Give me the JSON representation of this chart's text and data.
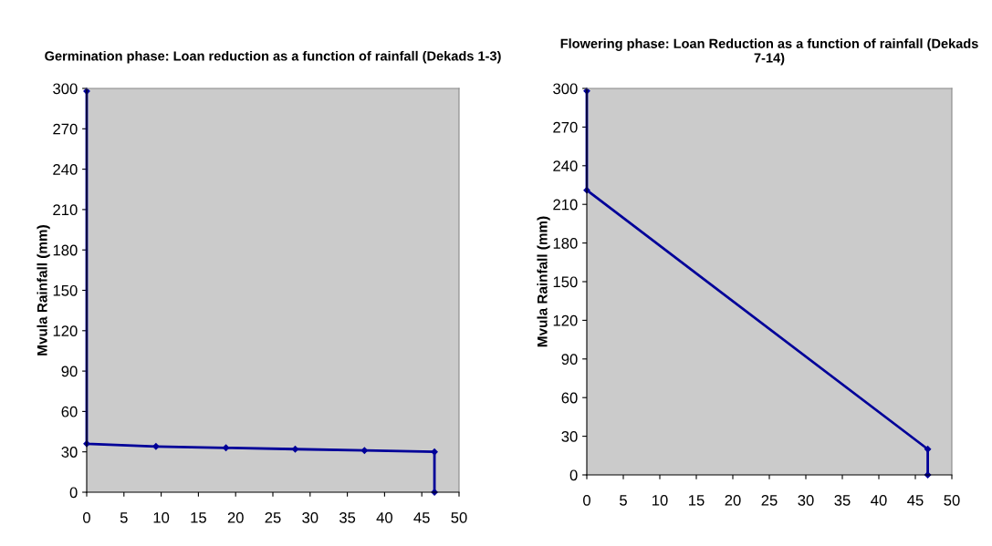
{
  "chart_data": [
    {
      "type": "line",
      "title": "Germination phase: Loan reduction as a function of rainfall (Dekads 1-3)",
      "ylabel": "Mvula Rainfall (mm)",
      "marker": "diamond",
      "line_style": "solid",
      "grid": false,
      "legend": false,
      "xlim": [
        0,
        50
      ],
      "xticks": [
        0,
        5,
        10,
        15,
        20,
        25,
        30,
        35,
        40,
        45,
        50
      ],
      "ylim": [
        0,
        300
      ],
      "yticks": [
        0,
        30,
        60,
        90,
        120,
        150,
        180,
        210,
        240,
        270,
        300
      ],
      "series": [
        {
          "color": "#000099",
          "x": [
            0,
            0,
            9.3,
            18.7,
            28,
            37.3,
            46.7,
            46.7
          ],
          "values": [
            298,
            36,
            34,
            33,
            32,
            31,
            30,
            0
          ]
        }
      ]
    },
    {
      "type": "line",
      "title": "Flowering phase: Loan Reduction as a function of rainfall (Dekads 7-14)",
      "ylabel": "Mvula Rainfall (mm)",
      "marker": "diamond",
      "line_style": "solid",
      "grid": false,
      "legend": false,
      "xlim": [
        0,
        50
      ],
      "xticks": [
        0,
        5,
        10,
        15,
        20,
        25,
        30,
        35,
        40,
        45,
        50
      ],
      "ylim": [
        0,
        300
      ],
      "yticks": [
        0,
        30,
        60,
        90,
        120,
        150,
        180,
        210,
        240,
        270,
        300
      ],
      "series": [
        {
          "color": "#000099",
          "x": [
            0,
            0,
            46.7,
            46.7
          ],
          "values": [
            298,
            221,
            20,
            0
          ]
        }
      ]
    }
  ]
}
